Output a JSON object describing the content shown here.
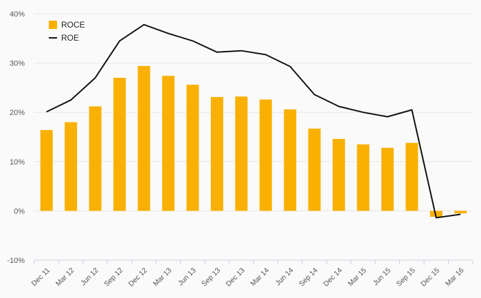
{
  "chart_data": {
    "type": "bar",
    "categories": [
      "Dec 11",
      "Mar 12",
      "Jun 12",
      "Sep 12",
      "Dec 12",
      "Mar 13",
      "Jun 13",
      "Sep 13",
      "Dec 13",
      "Mar 14",
      "Jun 14",
      "Sep 14",
      "Dec 14",
      "Mar 15",
      "Jun 15",
      "Sep 15",
      "Dec 15",
      "Mar 16"
    ],
    "series": [
      {
        "name": "ROCE",
        "kind": "bar",
        "color": "#f9b000",
        "values": [
          16.4,
          18.0,
          21.2,
          27.0,
          29.4,
          27.4,
          25.6,
          23.1,
          23.2,
          22.6,
          20.6,
          16.7,
          14.6,
          13.5,
          12.8,
          13.8,
          -1.2,
          -0.5
        ]
      },
      {
        "name": "ROE",
        "kind": "line",
        "color": "#111111",
        "values": [
          20.1,
          22.5,
          27.0,
          34.5,
          37.8,
          36.0,
          34.5,
          32.2,
          32.5,
          31.7,
          29.3,
          23.6,
          21.2,
          20.0,
          19.1,
          20.5,
          -1.4,
          -0.7
        ]
      }
    ],
    "yticks": [
      -10,
      0,
      10,
      20,
      30,
      40
    ],
    "ytick_labels": [
      "-10%",
      "0%",
      "10%",
      "20%",
      "30%",
      "40%"
    ],
    "ylim": [
      -10,
      40
    ],
    "grid": true,
    "legend_position": "top-left",
    "title": "",
    "xlabel": "",
    "ylabel": ""
  }
}
